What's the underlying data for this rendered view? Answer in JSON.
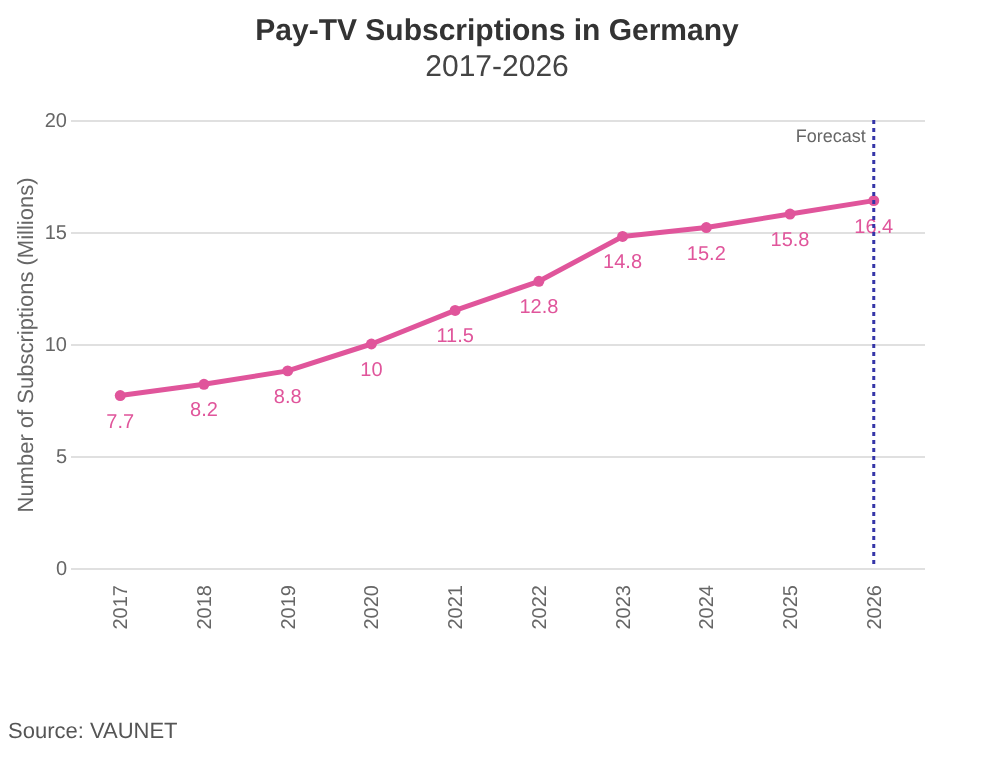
{
  "chart_data": {
    "type": "line",
    "title": "Pay-TV Subscriptions in Germany",
    "subtitle": "2017-2026",
    "ylabel": "Number of Subscriptions (Millions)",
    "categories": [
      "2017",
      "2018",
      "2019",
      "2020",
      "2021",
      "2022",
      "2023",
      "2024",
      "2025",
      "2026"
    ],
    "series": [
      {
        "color": "#e0559b",
        "values": [
          7.7,
          8.2,
          8.8,
          10,
          11.5,
          12.8,
          14.8,
          15.2,
          15.8,
          16.4
        ]
      }
    ],
    "ylim": [
      0,
      20
    ],
    "yticks": [
      0,
      5,
      10,
      15,
      20
    ],
    "grid": "y",
    "marker": "circle",
    "line_style": "solid",
    "data_labels": true,
    "ref_lines": [
      {
        "axis": "x",
        "value": "2026",
        "label": "Forecast",
        "color": "#3535a8",
        "line_style": "dotted"
      }
    ],
    "annotations": [
      "Source: VAUNET"
    ]
  }
}
